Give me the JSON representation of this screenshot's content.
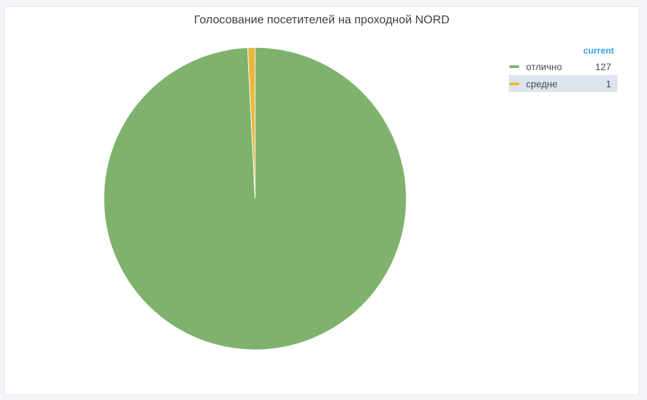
{
  "panel": {
    "title": "Голосование посетителей на проходной NORD"
  },
  "legend": {
    "header": "current",
    "items": [
      {
        "label": "отлично",
        "value": "127",
        "color": "#7eb26d"
      },
      {
        "label": "средне",
        "value": "1",
        "color": "#eab839"
      }
    ]
  },
  "chart_data": {
    "type": "pie",
    "title": "Голосование посетителей на проходной NORD",
    "slices": [
      {
        "label": "отлично",
        "value": 127,
        "color": "#7eb26d"
      },
      {
        "label": "средне",
        "value": 1,
        "color": "#eab839"
      }
    ],
    "legend_placement": "top-right"
  }
}
